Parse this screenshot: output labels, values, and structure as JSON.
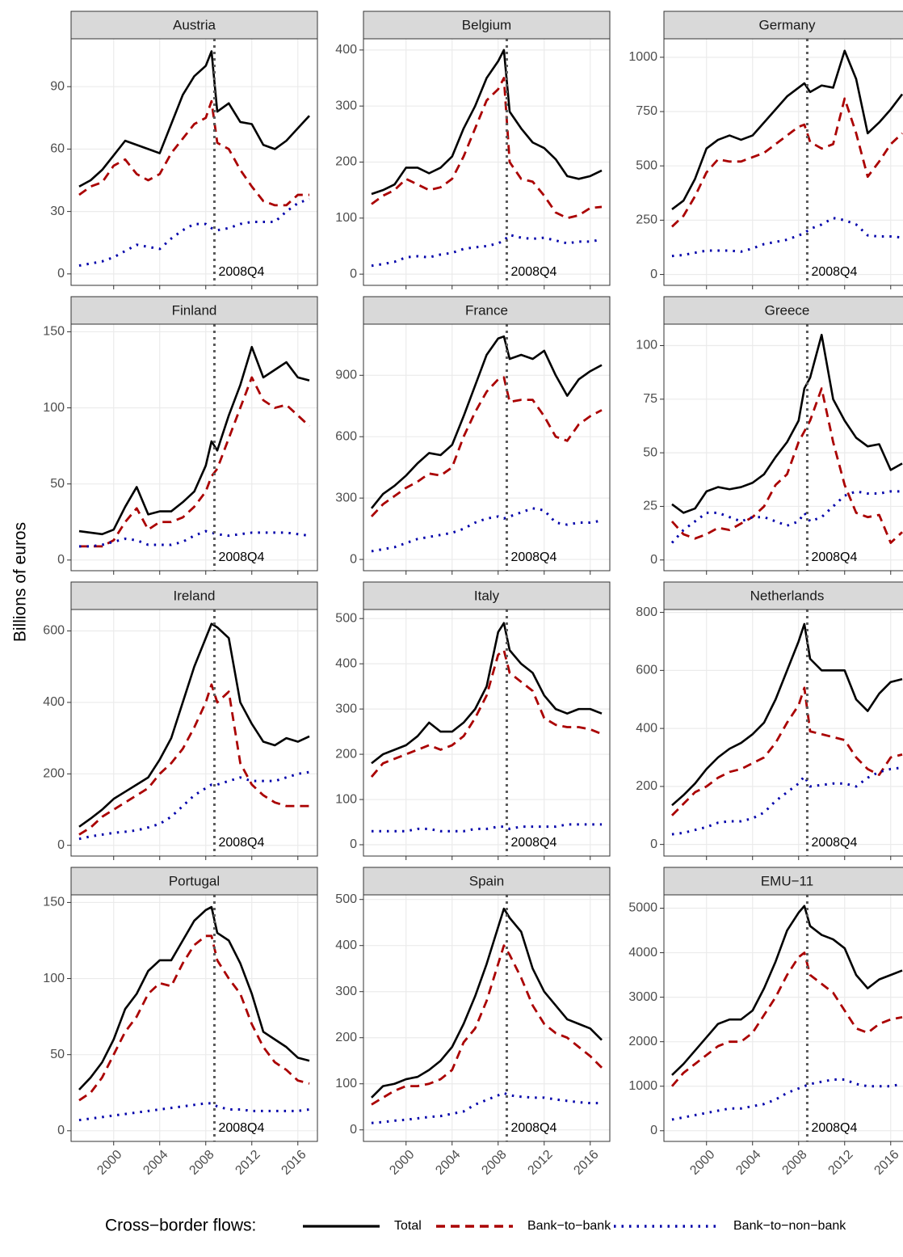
{
  "chart_data": {
    "type": "line",
    "y_label": "Billions of euros",
    "legend_title": "Cross−border flows:",
    "x": [
      1997,
      1998,
      1999,
      2000,
      2001,
      2002,
      2003,
      2004,
      2005,
      2006,
      2007,
      2008,
      2008.5,
      2009,
      2010,
      2011,
      2012,
      2013,
      2014,
      2015,
      2016,
      2017
    ],
    "xlim": [
      1996.3,
      2017.7
    ],
    "xticks": [
      2000,
      2004,
      2008,
      2012,
      2016
    ],
    "vline": {
      "x": 2008.75,
      "label": "2008Q4",
      "color": "#595959"
    },
    "grid": true,
    "legend_position": "bottom",
    "series": [
      {
        "name": "Total",
        "color": "#000000",
        "dash": "solid"
      },
      {
        "name": "Bank−to−bank",
        "color": "#aa0000",
        "dash": "dashed"
      },
      {
        "name": "Bank−to−non−bank",
        "color": "#0000aa",
        "dash": "dotted"
      }
    ],
    "panels": [
      {
        "title": "Austria",
        "ylim": [
          -5.5,
          113
        ],
        "yticks": [
          0,
          30,
          60,
          90
        ],
        "values": [
          [
            42,
            45,
            50,
            57,
            64,
            62,
            60,
            58,
            72,
            86,
            95,
            100,
            107,
            78,
            82,
            73,
            72,
            62,
            60,
            64,
            70,
            76
          ],
          [
            38,
            42,
            44,
            52,
            55,
            48,
            45,
            48,
            58,
            65,
            72,
            75,
            83,
            63,
            60,
            50,
            42,
            35,
            33,
            33,
            38,
            38
          ],
          [
            4,
            5,
            6,
            8,
            11,
            14,
            13,
            12,
            17,
            21,
            24,
            24,
            22,
            21,
            22,
            24,
            25,
            25,
            25,
            30,
            34,
            36
          ]
        ]
      },
      {
        "title": "Belgium",
        "ylim": [
          -20,
          420
        ],
        "yticks": [
          0,
          100,
          200,
          300,
          400
        ],
        "values": [
          [
            143,
            150,
            160,
            190,
            190,
            180,
            190,
            210,
            260,
            300,
            350,
            380,
            400,
            290,
            260,
            235,
            225,
            205,
            175,
            170,
            175,
            185
          ],
          [
            125,
            140,
            150,
            170,
            160,
            150,
            155,
            170,
            210,
            260,
            310,
            330,
            350,
            200,
            170,
            165,
            140,
            110,
            100,
            105,
            118,
            120
          ],
          [
            15,
            18,
            22,
            30,
            32,
            30,
            35,
            38,
            45,
            48,
            50,
            55,
            60,
            70,
            65,
            63,
            65,
            60,
            55,
            58,
            58,
            62
          ]
        ]
      },
      {
        "title": "Germany",
        "ylim": [
          -50,
          1085
        ],
        "yticks": [
          0,
          250,
          500,
          750,
          1000
        ],
        "values": [
          [
            300,
            340,
            440,
            580,
            620,
            640,
            620,
            640,
            700,
            760,
            820,
            860,
            880,
            840,
            870,
            860,
            1030,
            900,
            650,
            700,
            760,
            830
          ],
          [
            220,
            270,
            360,
            470,
            530,
            520,
            520,
            540,
            560,
            600,
            640,
            680,
            690,
            610,
            580,
            600,
            810,
            650,
            450,
            520,
            600,
            650
          ],
          [
            85,
            90,
            100,
            110,
            110,
            110,
            105,
            120,
            140,
            150,
            160,
            180,
            190,
            210,
            230,
            260,
            250,
            230,
            180,
            175,
            175,
            170
          ]
        ]
      },
      {
        "title": "Finland",
        "ylim": [
          -7,
          155
        ],
        "yticks": [
          0,
          50,
          100,
          150
        ],
        "values": [
          [
            19,
            18,
            17,
            20,
            35,
            48,
            30,
            32,
            32,
            38,
            45,
            62,
            78,
            72,
            95,
            115,
            140,
            120,
            125,
            130,
            120,
            118
          ],
          [
            9,
            9,
            9,
            13,
            25,
            34,
            20,
            25,
            25,
            28,
            35,
            45,
            55,
            60,
            80,
            100,
            120,
            105,
            100,
            102,
            95,
            88
          ],
          [
            9,
            9,
            10,
            12,
            14,
            13,
            10,
            10,
            10,
            12,
            16,
            19,
            18,
            17,
            16,
            17,
            18,
            18,
            18,
            18,
            17,
            16
          ]
        ]
      },
      {
        "title": "France",
        "ylim": [
          -55,
          1150
        ],
        "yticks": [
          0,
          300,
          600,
          900
        ],
        "values": [
          [
            250,
            320,
            360,
            410,
            470,
            520,
            510,
            560,
            700,
            850,
            1000,
            1080,
            1090,
            980,
            1000,
            980,
            1020,
            900,
            800,
            880,
            920,
            950
          ],
          [
            210,
            270,
            310,
            350,
            380,
            420,
            410,
            450,
            600,
            720,
            820,
            880,
            890,
            770,
            780,
            780,
            700,
            600,
            580,
            660,
            700,
            730
          ],
          [
            40,
            50,
            60,
            80,
            100,
            110,
            120,
            130,
            150,
            180,
            200,
            210,
            200,
            210,
            230,
            250,
            240,
            180,
            170,
            180,
            180,
            190
          ]
        ]
      },
      {
        "title": "Greece",
        "ylim": [
          -5,
          110
        ],
        "yticks": [
          0,
          25,
          50,
          75,
          100
        ],
        "values": [
          [
            26,
            22,
            24,
            32,
            34,
            33,
            34,
            36,
            40,
            48,
            55,
            65,
            80,
            85,
            105,
            75,
            65,
            57,
            53,
            54,
            42,
            45
          ],
          [
            18,
            12,
            10,
            12,
            15,
            14,
            17,
            20,
            25,
            35,
            40,
            55,
            60,
            65,
            80,
            55,
            35,
            22,
            20,
            21,
            8,
            13
          ],
          [
            8,
            14,
            18,
            22,
            22,
            20,
            18,
            20,
            20,
            18,
            16,
            18,
            22,
            18,
            20,
            25,
            30,
            32,
            31,
            31,
            32,
            32
          ]
        ]
      },
      {
        "title": "Ireland",
        "ylim": [
          -30,
          660
        ],
        "yticks": [
          0,
          200,
          400,
          600
        ],
        "values": [
          [
            52,
            75,
            100,
            130,
            150,
            170,
            190,
            240,
            300,
            400,
            500,
            580,
            620,
            610,
            580,
            400,
            340,
            290,
            280,
            300,
            290,
            305
          ],
          [
            30,
            50,
            80,
            100,
            120,
            140,
            160,
            200,
            230,
            270,
            330,
            400,
            450,
            400,
            430,
            230,
            170,
            140,
            120,
            110,
            110,
            110
          ],
          [
            18,
            25,
            30,
            35,
            38,
            42,
            50,
            60,
            80,
            110,
            140,
            160,
            170,
            170,
            180,
            190,
            180,
            180,
            180,
            190,
            200,
            205
          ]
        ]
      },
      {
        "title": "Italy",
        "ylim": [
          -25,
          520
        ],
        "yticks": [
          0,
          100,
          200,
          300,
          400,
          500
        ],
        "values": [
          [
            180,
            200,
            210,
            220,
            240,
            270,
            250,
            250,
            270,
            300,
            350,
            470,
            490,
            430,
            400,
            380,
            330,
            300,
            290,
            300,
            300,
            290
          ],
          [
            150,
            180,
            190,
            200,
            210,
            220,
            210,
            220,
            240,
            280,
            330,
            420,
            430,
            380,
            360,
            340,
            280,
            265,
            260,
            260,
            255,
            245
          ],
          [
            30,
            30,
            30,
            30,
            35,
            35,
            30,
            30,
            30,
            35,
            35,
            40,
            40,
            35,
            40,
            40,
            40,
            40,
            45,
            45,
            45,
            45
          ]
        ]
      },
      {
        "title": "Netherlands",
        "ylim": [
          -40,
          810
        ],
        "yticks": [
          0,
          200,
          400,
          600,
          800
        ],
        "values": [
          [
            135,
            170,
            210,
            260,
            300,
            330,
            350,
            380,
            420,
            500,
            600,
            700,
            760,
            640,
            600,
            600,
            600,
            500,
            460,
            520,
            560,
            570
          ],
          [
            100,
            140,
            180,
            200,
            230,
            250,
            260,
            280,
            300,
            350,
            420,
            480,
            540,
            390,
            380,
            370,
            360,
            300,
            260,
            240,
            300,
            310
          ],
          [
            35,
            40,
            50,
            60,
            75,
            80,
            80,
            90,
            110,
            150,
            180,
            210,
            235,
            200,
            205,
            210,
            210,
            200,
            230,
            250,
            260,
            265
          ]
        ]
      },
      {
        "title": "Portugal",
        "ylim": [
          -7,
          155
        ],
        "yticks": [
          0,
          50,
          100,
          150
        ],
        "values": [
          [
            27,
            35,
            45,
            60,
            80,
            90,
            105,
            112,
            112,
            125,
            138,
            145,
            147,
            130,
            125,
            110,
            90,
            65,
            60,
            55,
            48,
            46
          ],
          [
            20,
            25,
            35,
            50,
            65,
            75,
            90,
            97,
            95,
            110,
            122,
            128,
            128,
            112,
            100,
            90,
            70,
            55,
            45,
            40,
            33,
            31
          ],
          [
            7,
            8,
            9,
            10,
            11,
            12,
            13,
            14,
            15,
            16,
            17,
            18,
            18,
            16,
            14,
            14,
            13,
            13,
            13,
            13,
            13,
            14
          ]
        ]
      },
      {
        "title": "Spain",
        "ylim": [
          -25,
          510
        ],
        "yticks": [
          0,
          100,
          200,
          300,
          400,
          500
        ],
        "values": [
          [
            70,
            95,
            100,
            110,
            115,
            130,
            150,
            180,
            230,
            290,
            360,
            440,
            480,
            460,
            430,
            350,
            300,
            270,
            240,
            230,
            220,
            195
          ],
          [
            55,
            70,
            85,
            95,
            95,
            100,
            110,
            130,
            190,
            220,
            280,
            360,
            400,
            380,
            330,
            270,
            230,
            210,
            200,
            180,
            160,
            135
          ],
          [
            15,
            17,
            20,
            22,
            25,
            28,
            30,
            35,
            40,
            55,
            65,
            75,
            80,
            75,
            72,
            70,
            70,
            66,
            63,
            60,
            58,
            58
          ]
        ]
      },
      {
        "title": "EMU−11",
        "ylim": [
          -240,
          5300
        ],
        "yticks": [
          0,
          1000,
          2000,
          3000,
          4000,
          5000
        ],
        "values": [
          [
            1250,
            1500,
            1800,
            2100,
            2400,
            2500,
            2500,
            2700,
            3200,
            3800,
            4500,
            4900,
            5050,
            4600,
            4400,
            4300,
            4100,
            3500,
            3200,
            3400,
            3500,
            3600
          ],
          [
            1000,
            1300,
            1500,
            1700,
            1900,
            2000,
            2000,
            2200,
            2600,
            3000,
            3500,
            3900,
            4000,
            3500,
            3300,
            3100,
            2700,
            2300,
            2200,
            2400,
            2500,
            2550
          ],
          [
            250,
            300,
            350,
            400,
            450,
            500,
            500,
            550,
            600,
            700,
            850,
            950,
            1000,
            1050,
            1100,
            1150,
            1150,
            1050,
            1000,
            1000,
            1000,
            1050
          ]
        ]
      }
    ]
  }
}
